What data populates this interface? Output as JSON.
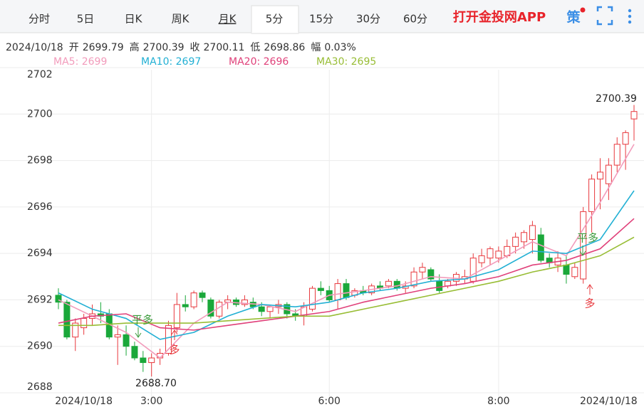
{
  "tabs": [
    "分时",
    "5日",
    "日K",
    "周K",
    "月K",
    "5分",
    "15分",
    "30分",
    "60分"
  ],
  "app_link": "打开金投网APP",
  "strategy_icon": "策",
  "info": {
    "date": "2024/10/18",
    "items": [
      {
        "label": "开",
        "value": "2699.79"
      },
      {
        "label": "高",
        "value": "2700.39"
      },
      {
        "label": "收",
        "value": "2700.11"
      },
      {
        "label": "低",
        "value": "2698.86"
      },
      {
        "label": "幅",
        "value": "0.03%"
      }
    ]
  },
  "chart_data": {
    "type": "candlestick",
    "ylim": [
      2688,
      2702
    ],
    "yticks": [
      2688,
      2690,
      2692,
      2694,
      2696,
      2698,
      2700,
      2702
    ],
    "xlim": [
      0,
      68
    ],
    "xticks": [
      {
        "value": 3,
        "label": "2024/10/18"
      },
      {
        "value": 11,
        "label": "3:00"
      },
      {
        "value": 32,
        "label": "6:00"
      },
      {
        "value": 52,
        "label": "8:00"
      },
      {
        "value": 65,
        "label": "2024/10/18"
      }
    ],
    "up_color": "#e8383d",
    "down_color": "#1aa83a",
    "candles": [
      [
        2692.2,
        2692.5,
        2691.6,
        2691.9
      ],
      [
        2691.9,
        2692.0,
        2690.3,
        2690.4
      ],
      [
        2690.4,
        2691.2,
        2689.8,
        2691.0
      ],
      [
        2690.8,
        2691.4,
        2690.5,
        2691.2
      ],
      [
        2691.2,
        2691.8,
        2690.9,
        2691.4
      ],
      [
        2691.4,
        2691.9,
        2691.0,
        2691.3
      ],
      [
        2691.4,
        2691.6,
        2690.3,
        2690.4
      ],
      [
        2690.4,
        2690.9,
        2689.2,
        2690.5
      ],
      [
        2690.5,
        2690.9,
        2689.6,
        2690.0
      ],
      [
        2690.0,
        2690.2,
        2689.4,
        2689.5
      ],
      [
        2689.5,
        2689.8,
        2688.9,
        2689.3
      ],
      [
        2689.3,
        2689.7,
        2688.7,
        2689.5
      ],
      [
        2689.5,
        2689.9,
        2689.2,
        2689.7
      ],
      [
        2689.7,
        2691.1,
        2689.6,
        2690.9
      ],
      [
        2690.8,
        2692.3,
        2690.6,
        2691.8
      ],
      [
        2691.8,
        2692.2,
        2691.5,
        2691.7
      ],
      [
        2691.7,
        2692.4,
        2691.6,
        2692.3
      ],
      [
        2692.3,
        2692.4,
        2691.9,
        2692.1
      ],
      [
        2692.0,
        2692.1,
        2691.2,
        2691.3
      ],
      [
        2691.3,
        2692.0,
        2691.2,
        2691.9
      ],
      [
        2691.9,
        2692.2,
        2691.6,
        2692.0
      ],
      [
        2692.0,
        2692.1,
        2691.7,
        2691.8
      ],
      [
        2691.8,
        2692.2,
        2691.7,
        2692.0
      ],
      [
        2691.9,
        2692.1,
        2691.6,
        2691.7
      ],
      [
        2691.7,
        2691.9,
        2691.3,
        2691.5
      ],
      [
        2691.5,
        2691.8,
        2691.2,
        2691.7
      ],
      [
        2691.7,
        2692.0,
        2691.4,
        2691.8
      ],
      [
        2691.8,
        2691.9,
        2691.2,
        2691.4
      ],
      [
        2691.4,
        2691.6,
        2691.1,
        2691.3
      ],
      [
        2691.3,
        2691.9,
        2690.9,
        2691.7
      ],
      [
        2691.6,
        2692.6,
        2691.5,
        2692.5
      ],
      [
        2692.5,
        2692.8,
        2692.2,
        2692.4
      ],
      [
        2692.4,
        2692.6,
        2691.9,
        2692.0
      ],
      [
        2692.0,
        2692.9,
        2691.6,
        2692.7
      ],
      [
        2692.7,
        2692.9,
        2692.0,
        2692.1
      ],
      [
        2692.2,
        2692.5,
        2692.1,
        2692.4
      ],
      [
        2692.4,
        2692.6,
        2692.2,
        2692.3
      ],
      [
        2692.3,
        2692.7,
        2692.2,
        2692.6
      ],
      [
        2692.6,
        2692.8,
        2692.4,
        2692.5
      ],
      [
        2692.6,
        2692.9,
        2692.5,
        2692.8
      ],
      [
        2692.8,
        2692.9,
        2692.4,
        2692.5
      ],
      [
        2692.5,
        2692.8,
        2692.3,
        2692.6
      ],
      [
        2692.6,
        2693.4,
        2692.5,
        2693.2
      ],
      [
        2693.2,
        2693.6,
        2692.9,
        2693.4
      ],
      [
        2693.3,
        2693.4,
        2692.8,
        2692.9
      ],
      [
        2692.8,
        2693.1,
        2692.3,
        2692.4
      ],
      [
        2692.6,
        2692.9,
        2692.5,
        2692.8
      ],
      [
        2692.8,
        2693.2,
        2692.6,
        2693.1
      ],
      [
        2692.9,
        2693.3,
        2692.7,
        2693.0
      ],
      [
        2692.8,
        2694.0,
        2692.7,
        2693.8
      ],
      [
        2693.6,
        2694.2,
        2693.4,
        2693.9
      ],
      [
        2693.8,
        2694.3,
        2693.5,
        2694.2
      ],
      [
        2693.8,
        2694.3,
        2693.6,
        2694.1
      ],
      [
        2693.9,
        2694.6,
        2693.8,
        2694.3
      ],
      [
        2694.3,
        2694.9,
        2694.0,
        2694.7
      ],
      [
        2694.5,
        2695.0,
        2694.2,
        2694.9
      ],
      [
        2694.6,
        2695.4,
        2694.0,
        2695.2
      ],
      [
        2694.8,
        2695.1,
        2693.6,
        2693.7
      ],
      [
        2693.8,
        2694.0,
        2693.4,
        2693.6
      ],
      [
        2693.5,
        2694.1,
        2693.2,
        2693.8
      ],
      [
        2693.5,
        2693.9,
        2692.7,
        2693.1
      ],
      [
        2693.0,
        2693.6,
        2692.9,
        2693.4
      ],
      [
        2692.9,
        2696.0,
        2692.7,
        2695.8
      ],
      [
        2695.8,
        2697.4,
        2694.9,
        2697.2
      ],
      [
        2697.2,
        2698.1,
        2695.9,
        2697.5
      ],
      [
        2697.0,
        2698.1,
        2696.3,
        2697.8
      ],
      [
        2697.8,
        2699.0,
        2697.5,
        2698.7
      ],
      [
        2698.7,
        2699.3,
        2697.6,
        2699.2
      ],
      [
        2699.79,
        2700.39,
        2698.86,
        2700.11
      ]
    ],
    "ma_x": [
      0,
      4,
      8,
      12,
      16,
      20,
      24,
      28,
      32,
      36,
      40,
      44,
      48,
      52,
      56,
      60,
      64,
      68
    ],
    "series": [
      {
        "name": "MA5: 2699",
        "color": "#f29bbb",
        "values": [
          2692.0,
          2691.3,
          2690.6,
          2689.5,
          2691.0,
          2691.9,
          2691.8,
          2691.5,
          2692.2,
          2692.4,
          2692.6,
          2693.0,
          2692.9,
          2693.7,
          2694.5,
          2693.9,
          2696.2,
          2698.7
        ]
      },
      {
        "name": "MA10: 2697",
        "color": "#22b0d4",
        "values": [
          2692.3,
          2691.6,
          2691.2,
          2690.3,
          2690.6,
          2691.3,
          2691.8,
          2691.7,
          2691.9,
          2692.3,
          2692.5,
          2692.8,
          2692.9,
          2693.3,
          2694.1,
          2694.0,
          2694.6,
          2696.7
        ]
      },
      {
        "name": "MA20: 2696",
        "color": "#e0417a",
        "values": [
          2691.0,
          2691.3,
          2691.4,
          2690.8,
          2690.7,
          2690.9,
          2691.1,
          2691.3,
          2691.5,
          2691.9,
          2692.2,
          2692.5,
          2692.7,
          2693.0,
          2693.5,
          2693.7,
          2694.2,
          2695.5
        ]
      },
      {
        "name": "MA30: 2695",
        "color": "#98bd35",
        "values": [
          2690.9,
          2690.9,
          2691.0,
          2691.0,
          2691.0,
          2691.1,
          2691.2,
          2691.3,
          2691.3,
          2691.6,
          2691.9,
          2692.2,
          2692.5,
          2692.8,
          2693.2,
          2693.5,
          2693.9,
          2694.7
        ]
      }
    ],
    "annotations": {
      "high": "2700.39",
      "low": "2688.70",
      "signals": [
        "平多",
        "多",
        "平多",
        "多"
      ]
    }
  }
}
